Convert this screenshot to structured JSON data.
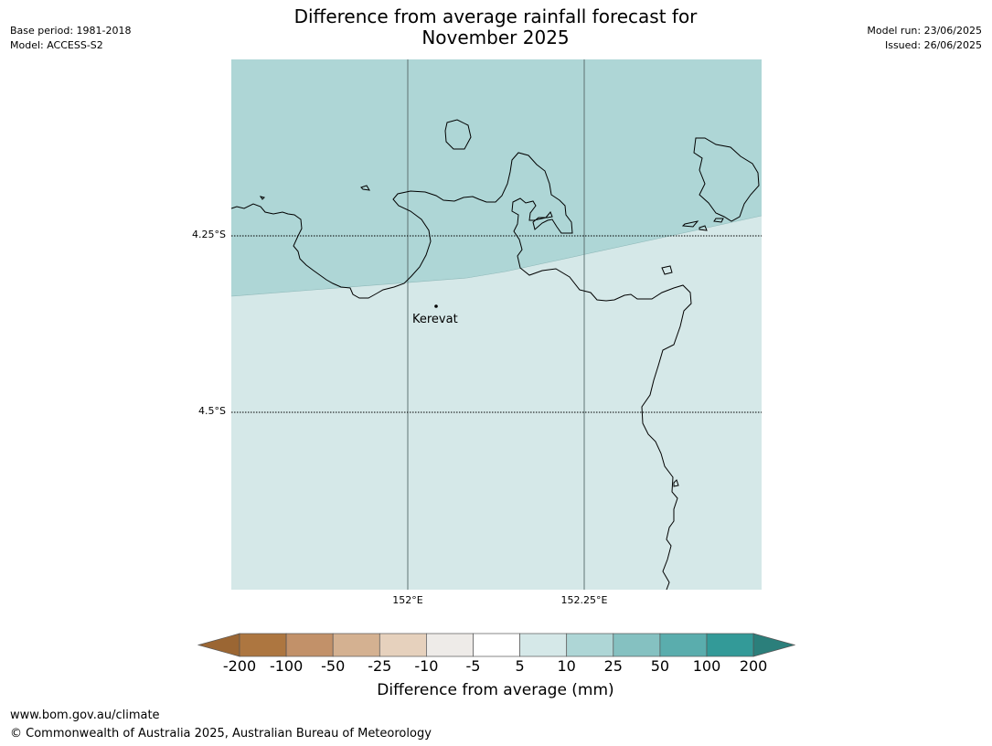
{
  "header": {
    "title_line1": "Difference from average rainfall forecast for",
    "title_line2": "November 2025",
    "base_period": "Base period: 1981-2018",
    "model": "Model: ACCESS-S2",
    "model_run": "Model run: 23/06/2025",
    "issued": "Issued: 26/06/2025"
  },
  "map": {
    "latitude_labels": [
      "4.25°S",
      "4.5°S"
    ],
    "longitude_labels": [
      "152°E",
      "152.25°E"
    ],
    "place": {
      "name": "Kerevat"
    },
    "shading": {
      "north_category": "25",
      "south_category": "5"
    }
  },
  "colorbar": {
    "title": "Difference from average (mm)",
    "tick_labels": [
      "-200",
      "-100",
      "-50",
      "-25",
      "-10",
      "-5",
      "5",
      "10",
      "25",
      "50",
      "100",
      "200"
    ],
    "colors": {
      "extend_low": "#9b6633",
      "c1": "#ad7640",
      "c2": "#c29169",
      "c3": "#d4b191",
      "c4": "#e6d1bd",
      "c5": "#eeebe8",
      "c6": "#ffffff",
      "c7": "#d5e8e8",
      "c8": "#aed6d6",
      "c9": "#85c1c1",
      "c10": "#5aadad",
      "c11": "#339a98",
      "extend_high": "#2b7f7b"
    }
  },
  "footer": {
    "url": "www.bom.gov.au/climate",
    "copyright": "© Commonwealth of Australia 2025, Australian Bureau of Meteorology"
  }
}
